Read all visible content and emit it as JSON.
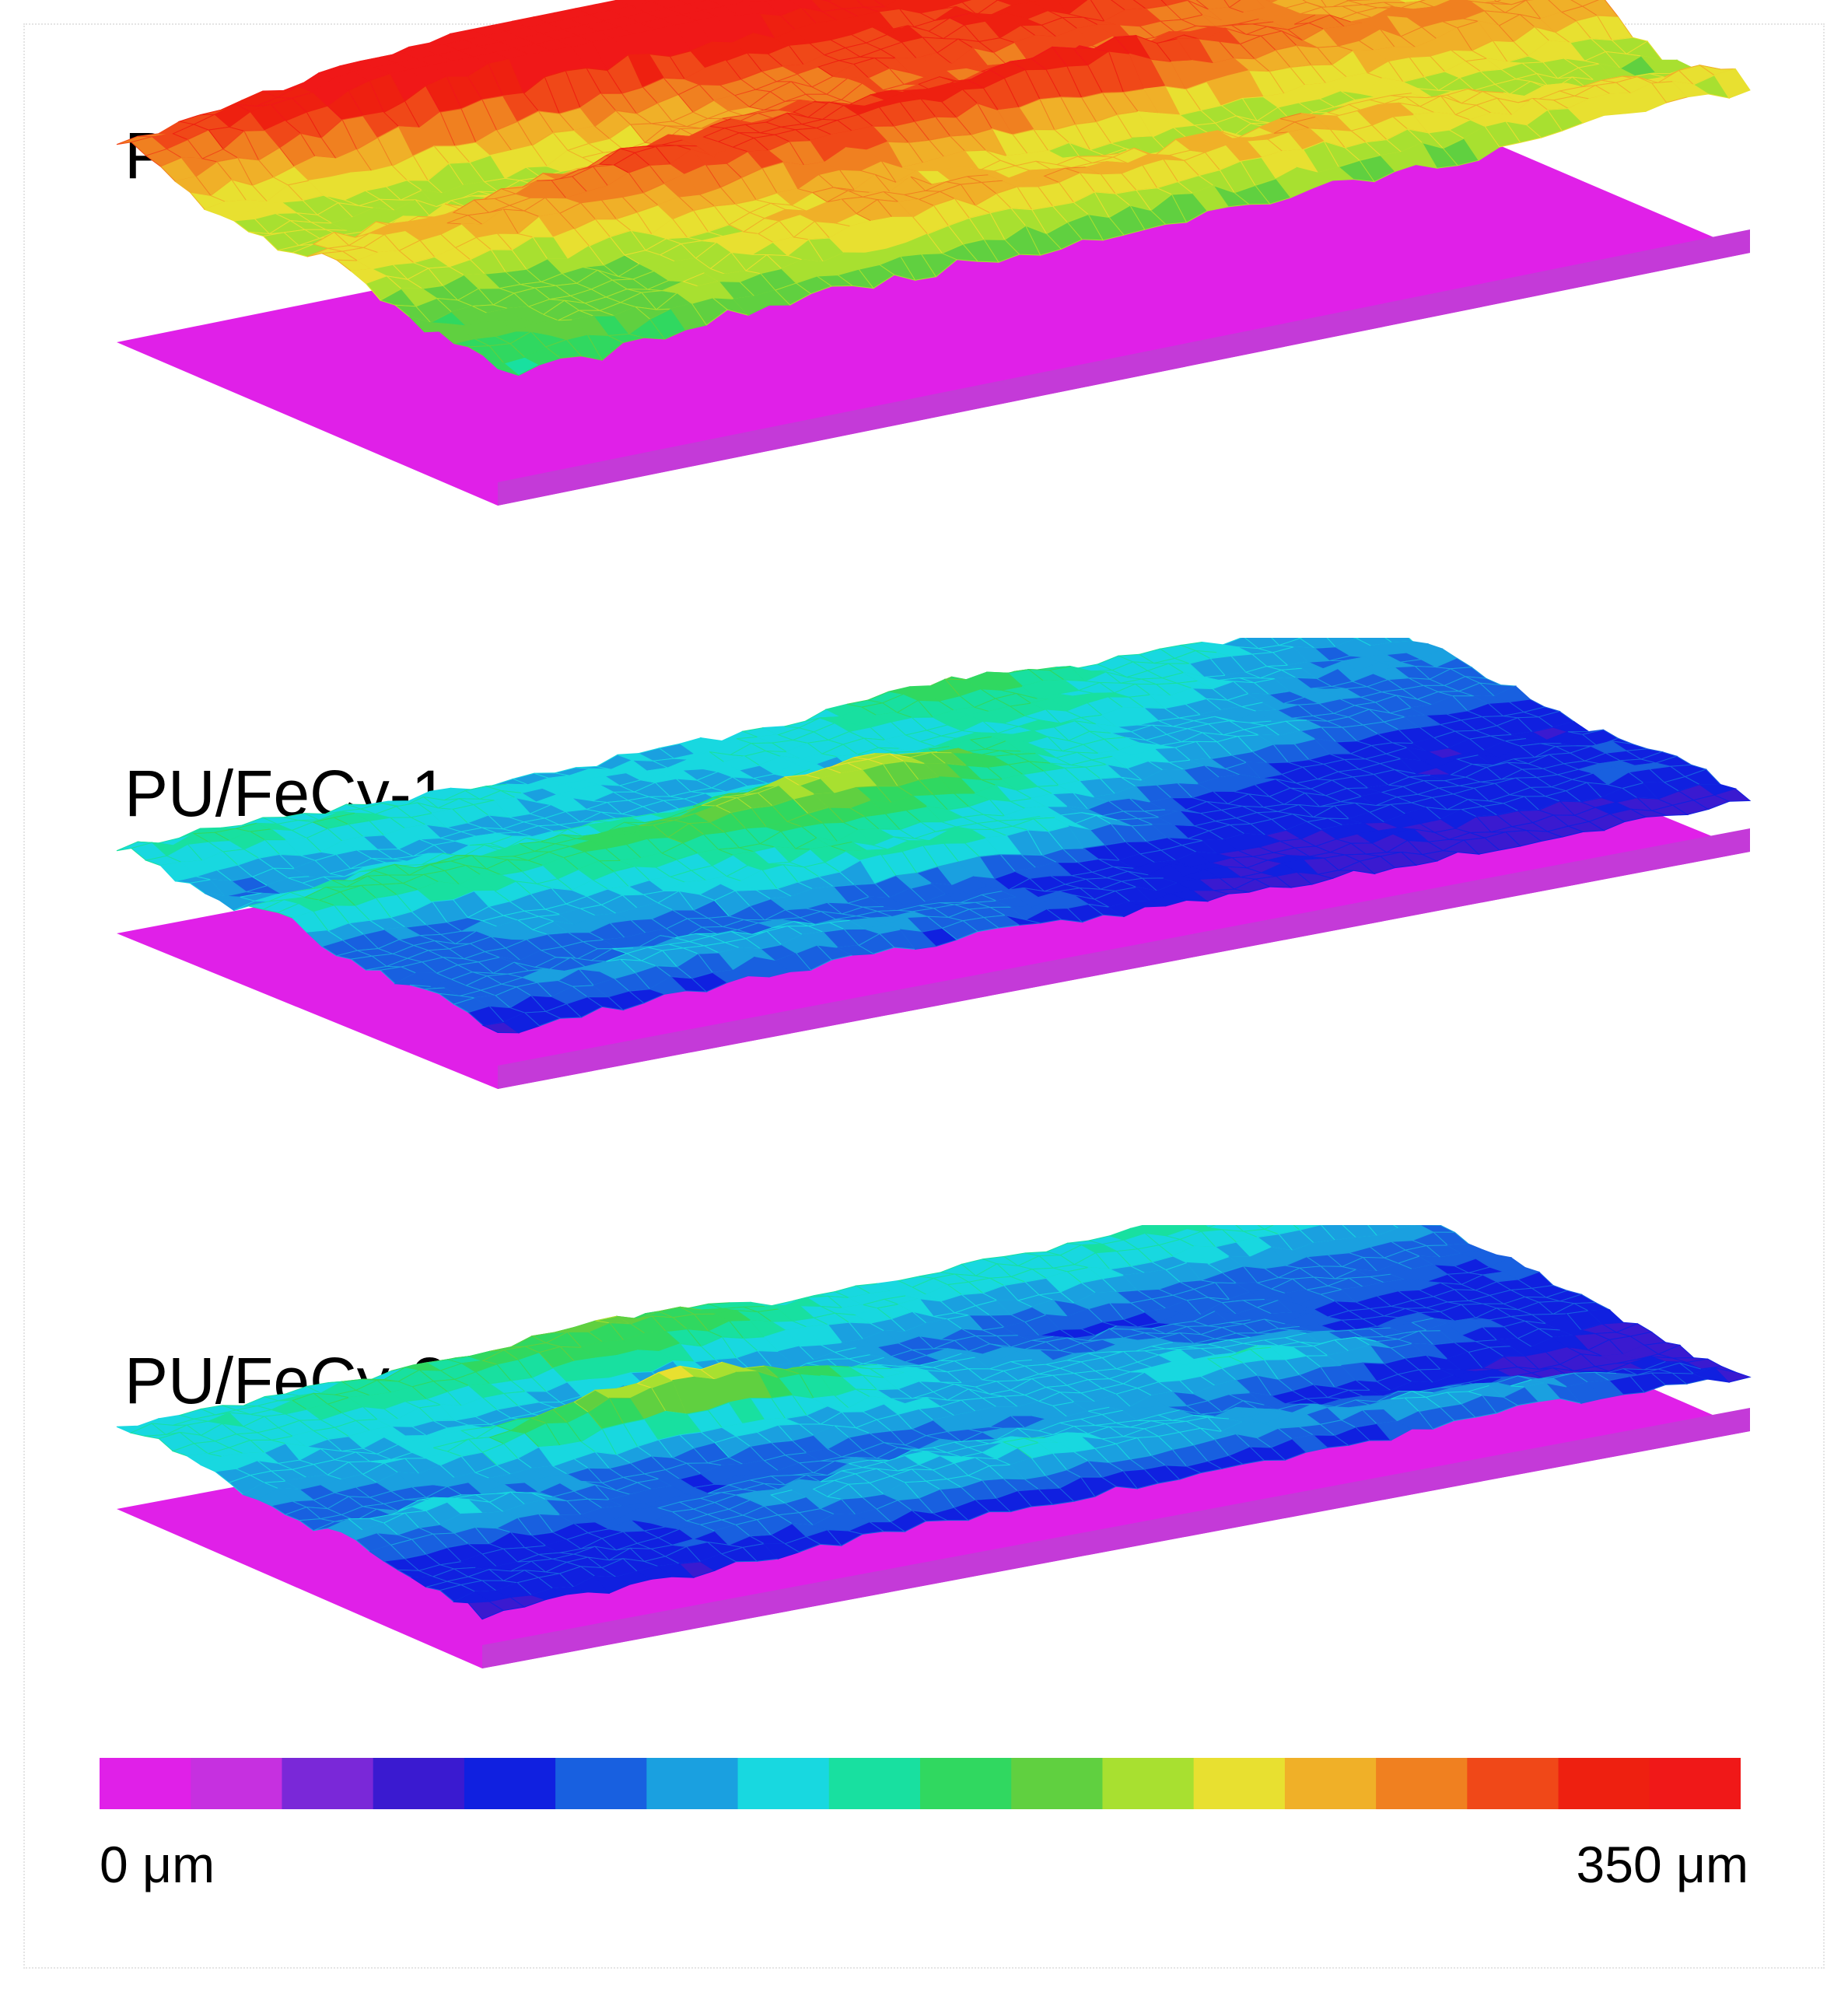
{
  "panels": [
    {
      "label": "PU",
      "mean_level": 0.66,
      "relief": 0.3
    },
    {
      "label": "PU/FeCy-1",
      "mean_level": 0.28,
      "relief": 0.18
    },
    {
      "label": "PU/FeCy-2",
      "mean_level": 0.26,
      "relief": 0.16
    }
  ],
  "colorbar": {
    "min_label": "0 μm",
    "max_label": "350 μm",
    "min_value": 0,
    "max_value": 350,
    "unit": "μm",
    "colors": [
      "#e020e8",
      "#c630e0",
      "#7a28d8",
      "#3a1ad0",
      "#1020e0",
      "#1860e0",
      "#1aa0e0",
      "#18d8e0",
      "#18e0a0",
      "#30d860",
      "#60d040",
      "#a8e030",
      "#e8e030",
      "#f0b028",
      "#f08020",
      "#f04818",
      "#ee2010",
      "#f01818"
    ]
  }
}
